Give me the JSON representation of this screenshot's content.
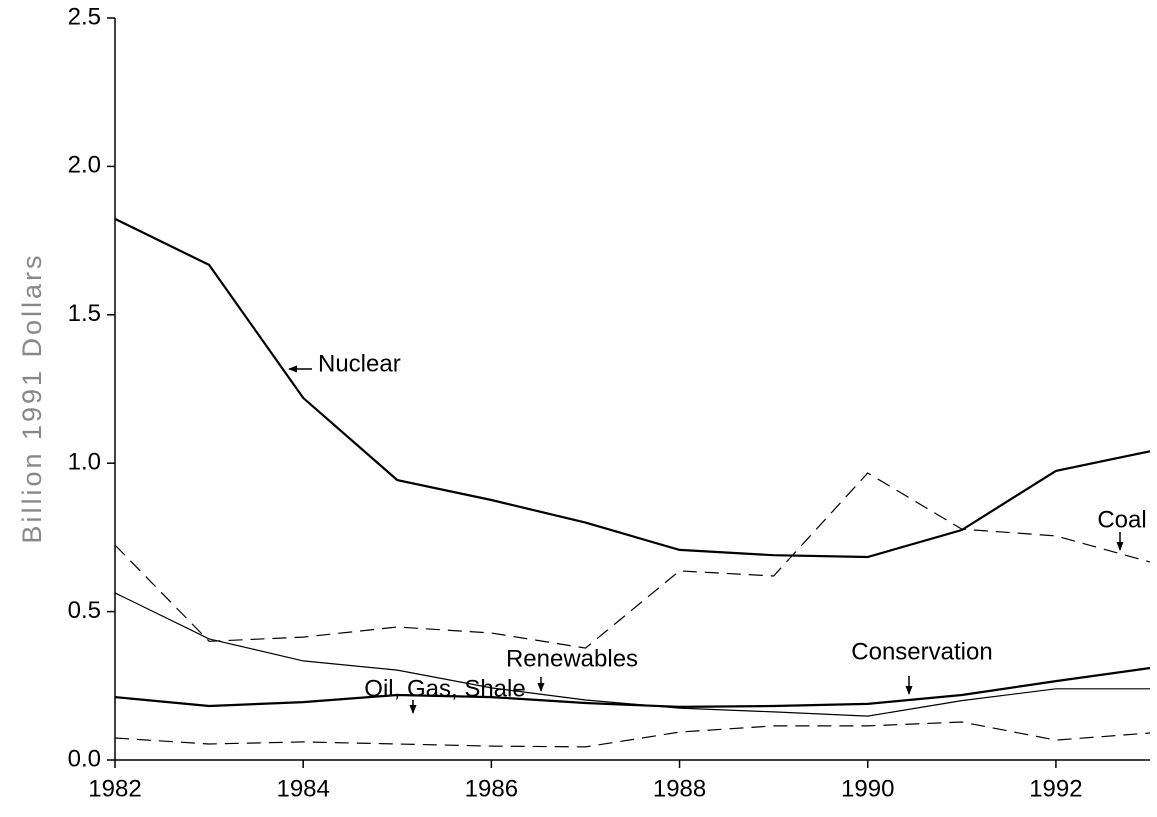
{
  "chart_data": {
    "type": "line",
    "ylabel": "Billion 1991 Dollars",
    "x": [
      1982,
      1983,
      1984,
      1985,
      1986,
      1987,
      1988,
      1989,
      1990,
      1991,
      1992,
      1993
    ],
    "series": [
      {
        "name": "Nuclear",
        "color": "#000000",
        "bold": true,
        "dashed": false,
        "values": [
          1.823,
          1.668,
          1.22,
          0.943,
          0.876,
          0.8,
          0.708,
          0.69,
          0.684,
          0.775,
          0.974,
          1.04
        ]
      },
      {
        "name": "Coal",
        "color": "#000000",
        "bold": false,
        "dashed": true,
        "values": [
          0.724,
          0.4,
          0.414,
          0.448,
          0.428,
          0.377,
          0.637,
          0.62,
          0.967,
          0.778,
          0.755,
          0.667
        ]
      },
      {
        "name": "Renewables",
        "color": "#000000",
        "bold": false,
        "dashed": false,
        "values": [
          0.563,
          0.408,
          0.334,
          0.303,
          0.243,
          0.202,
          0.175,
          0.162,
          0.148,
          0.2,
          0.24,
          0.24
        ]
      },
      {
        "name": "Conservation",
        "color": "#000000",
        "bold": true,
        "dashed": false,
        "values": [
          0.212,
          0.182,
          0.195,
          0.219,
          0.212,
          0.192,
          0.179,
          0.182,
          0.189,
          0.219,
          0.266,
          0.31
        ]
      },
      {
        "name": "Oil, Gas, Shale",
        "color": "#000000",
        "bold": false,
        "dashed": true,
        "values": [
          0.074,
          0.054,
          0.061,
          0.054,
          0.047,
          0.044,
          0.094,
          0.115,
          0.115,
          0.128,
          0.067,
          0.091
        ]
      }
    ],
    "xlim": [
      1982,
      1993
    ],
    "xticks": [
      1982,
      1984,
      1986,
      1988,
      1990,
      1992
    ],
    "ylim": [
      0,
      2.5
    ],
    "yticks": [
      {
        "value": 0,
        "label": "0.0"
      },
      0.5,
      {
        "value": 1,
        "label": "1.0"
      },
      1.5,
      {
        "value": 2,
        "label": "2.0"
      },
      2.5
    ]
  }
}
